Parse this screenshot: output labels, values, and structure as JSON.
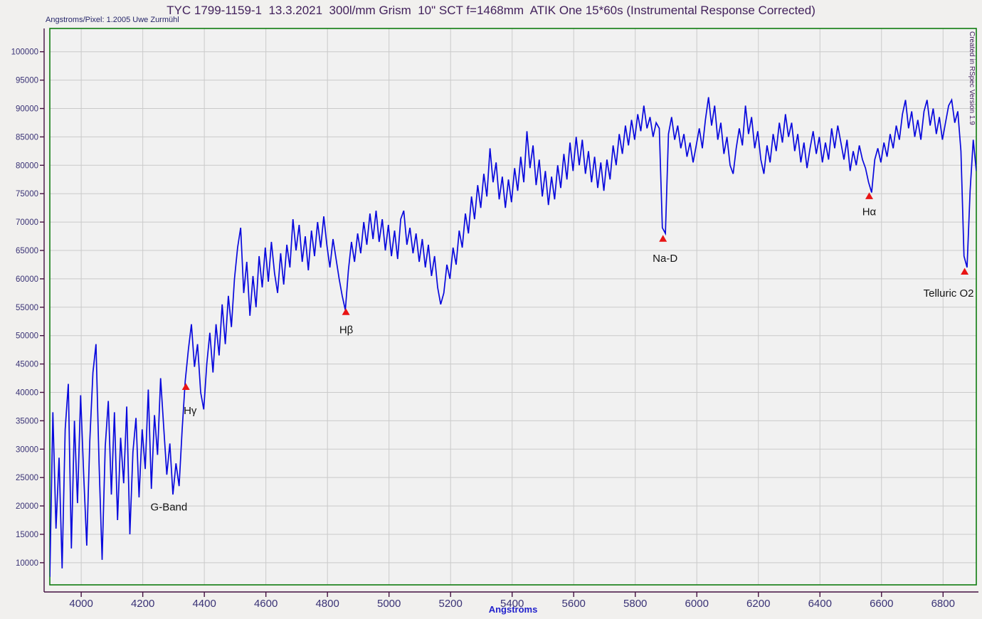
{
  "header": {
    "title": "TYC 1799-1159-1  13.3.2021  300l/mm Grism  10\" SCT f=1468mm  ATIK One 15*60s (Instrumental Response Corrected)",
    "subtitle": "Angstroms/Pixel: 1.2005 Uwe Zurmühl",
    "watermark": "Created in RSpec Version 1.9"
  },
  "colors": {
    "line": "#0808dd",
    "marker": "#e81414",
    "plot_border": "#107c10",
    "grid": "#cacaca",
    "axis": "#431040",
    "tick_label": "#393275",
    "title": "#42215c",
    "x_axis_title": "#2121cc",
    "feature_label": "#141414",
    "plot_background": "#f1f1f1",
    "page_background": "#f1f0ee"
  },
  "chart_data": {
    "type": "line",
    "title": "TYC 1799-1159-1  13.3.2021  300l/mm Grism  10\" SCT f=1468mm  ATIK One 15*60s (Instrumental Response Corrected)",
    "xlabel": "Angstroms",
    "ylabel": "",
    "grid": true,
    "xlim": [
      3898,
      6908
    ],
    "ylim": [
      6100,
      104100
    ],
    "x_ticks": [
      4000,
      4200,
      4400,
      4600,
      4800,
      5000,
      5200,
      5400,
      5600,
      5800,
      6000,
      6200,
      6400,
      6600,
      6800
    ],
    "y_ticks": [
      10000,
      15000,
      20000,
      25000,
      30000,
      35000,
      40000,
      45000,
      50000,
      55000,
      60000,
      65000,
      70000,
      75000,
      80000,
      85000,
      90000,
      95000,
      100000
    ],
    "x_start": 3898,
    "x_step": 10,
    "series": [
      {
        "name": "spectrum",
        "values": [
          7500,
          36500,
          16000,
          28500,
          9000,
          33500,
          41500,
          12500,
          35000,
          20500,
          39500,
          25500,
          13000,
          31500,
          43500,
          48500,
          27500,
          10500,
          30500,
          38500,
          22000,
          36500,
          17500,
          32000,
          24000,
          37500,
          15000,
          29500,
          35500,
          21500,
          33500,
          26500,
          40500,
          23000,
          36000,
          29000,
          42500,
          34000,
          25500,
          31000,
          22000,
          27500,
          23500,
          33500,
          42000,
          47500,
          52000,
          44500,
          48500,
          40000,
          37000,
          45000,
          50500,
          43500,
          52000,
          46500,
          55500,
          48500,
          57000,
          51500,
          60000,
          65500,
          69000,
          57500,
          63000,
          53500,
          60500,
          55000,
          64000,
          58500,
          65500,
          59500,
          66500,
          61000,
          57500,
          64500,
          59000,
          66000,
          62000,
          70500,
          65000,
          69500,
          63000,
          67500,
          61500,
          68500,
          64000,
          70000,
          65500,
          71000,
          66000,
          62000,
          67000,
          63500,
          60000,
          57000,
          54500,
          61500,
          66500,
          63000,
          68000,
          64500,
          70000,
          66000,
          71500,
          67000,
          72000,
          66500,
          70500,
          65000,
          69500,
          64000,
          68500,
          63500,
          70500,
          72000,
          66000,
          69000,
          64500,
          68000,
          63000,
          67000,
          62000,
          66000,
          60500,
          64000,
          58500,
          55500,
          57500,
          62500,
          60000,
          65500,
          62500,
          68500,
          65500,
          71500,
          68000,
          74500,
          70500,
          76500,
          72500,
          78500,
          74500,
          83000,
          77000,
          80500,
          74000,
          78000,
          72500,
          77500,
          73500,
          79500,
          75500,
          81500,
          77000,
          86000,
          79500,
          83500,
          76500,
          81000,
          74500,
          79000,
          73000,
          78000,
          74000,
          80000,
          76000,
          82000,
          77500,
          84000,
          79000,
          85000,
          80000,
          84500,
          78500,
          82500,
          77000,
          81500,
          76000,
          80500,
          75500,
          81000,
          77500,
          83500,
          80000,
          85500,
          82000,
          87000,
          83500,
          88000,
          84500,
          89000,
          86000,
          90500,
          86500,
          88500,
          85000,
          87500,
          86500,
          69000,
          68000,
          85500,
          88500,
          84500,
          87000,
          83000,
          85500,
          81500,
          84000,
          80500,
          83500,
          86500,
          83000,
          88000,
          92000,
          87000,
          90500,
          84500,
          87500,
          82000,
          85000,
          80000,
          78500,
          83000,
          86500,
          83500,
          90500,
          85500,
          88500,
          83000,
          86000,
          81000,
          78500,
          83500,
          80500,
          85500,
          82500,
          87500,
          84000,
          89000,
          85000,
          87500,
          82500,
          85500,
          80500,
          84000,
          79500,
          83000,
          86000,
          82000,
          85000,
          80500,
          84000,
          81000,
          86500,
          83000,
          87000,
          84000,
          81000,
          84500,
          79000,
          82500,
          80000,
          83500,
          81000,
          79500,
          77000,
          75200,
          81000,
          83000,
          80500,
          84000,
          81500,
          85500,
          83000,
          87000,
          84500,
          89000,
          91500,
          86500,
          89500,
          85000,
          88000,
          84500,
          89500,
          91500,
          87000,
          90000,
          85500,
          88500,
          84500,
          87500,
          90500,
          91500,
          87500,
          89500,
          82500,
          64000,
          62000,
          75500,
          84500,
          79000
        ]
      }
    ],
    "features": [
      {
        "label": "G-Band",
        "marker": false,
        "wavelength": 4285,
        "label_wavelength": 4285,
        "label_value": 19800
      },
      {
        "label": "Hγ",
        "marker": true,
        "wavelength": 4340,
        "marker_value": 41000,
        "label_wavelength": 4354,
        "label_value": 36800
      },
      {
        "label": "Hβ",
        "marker": true,
        "wavelength": 4860,
        "marker_value": 54200,
        "label_wavelength": 4861,
        "label_value": 51000
      },
      {
        "label": "Na-D",
        "marker": true,
        "wavelength": 5890,
        "marker_value": 67100,
        "label_wavelength": 5897,
        "label_value": 63600
      },
      {
        "label": "Hα",
        "marker": true,
        "wavelength": 6560,
        "marker_value": 74600,
        "label_wavelength": 6560,
        "label_value": 71800
      },
      {
        "label": "Telluric O2",
        "marker": true,
        "wavelength": 6870,
        "marker_value": 61300,
        "label_wavelength": 6818,
        "label_value": 57500
      }
    ]
  }
}
